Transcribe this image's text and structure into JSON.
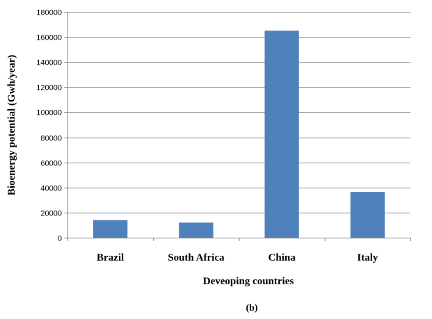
{
  "chart_data": {
    "type": "bar",
    "categories": [
      "Brazil",
      "South Africa",
      "China",
      "Italy"
    ],
    "values": [
      14000,
      12000,
      165000,
      36500
    ],
    "xlabel": "Deveoping countries",
    "ylabel": "Bioenergy potential  (Gwh/year)",
    "ylim": [
      0,
      180000
    ],
    "yticks": [
      0,
      20000,
      40000,
      60000,
      80000,
      100000,
      120000,
      140000,
      160000,
      180000
    ],
    "grid": true,
    "legend": "none",
    "bar_color": "#4f81bd",
    "caption": "(b)"
  }
}
